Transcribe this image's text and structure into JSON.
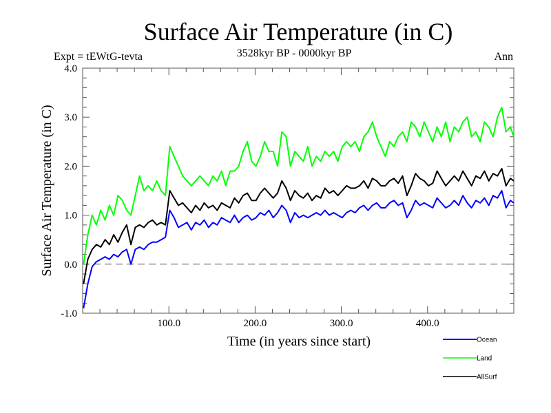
{
  "chart_data": {
    "type": "line",
    "title": "Surface Air Temperature (in C)",
    "subtitle_left": "Expt = tEWtG-tevta",
    "subtitle_center": "3528kyr BP - 0000kyr BP",
    "subtitle_right": "Ann",
    "xlabel": "Time (in years since start)",
    "ylabel": "Surface Air Temperature (in C)",
    "xlim": [
      0,
      500
    ],
    "ylim": [
      -1.0,
      4.0
    ],
    "xticks": [
      100,
      200,
      300,
      400
    ],
    "xtick_labels": [
      "100.0",
      "200.0",
      "300.0",
      "400.0"
    ],
    "yticks": [
      -1.0,
      0.0,
      1.0,
      2.0,
      3.0,
      4.0
    ],
    "ytick_labels": [
      "-1.0",
      "0.0",
      "1.0",
      "2.0",
      "3.0",
      "4.0"
    ],
    "reference_line": {
      "y": 0.0,
      "style": "dashed"
    },
    "legend_position": "bottom-right",
    "x_step": 5,
    "x_start": 1,
    "series": [
      {
        "name": "Ocean",
        "color": "#0000ff",
        "values": [
          -0.9,
          -0.4,
          -0.05,
          0.05,
          0.1,
          0.15,
          0.1,
          0.2,
          0.15,
          0.25,
          0.3,
          0.0,
          0.3,
          0.35,
          0.3,
          0.4,
          0.45,
          0.45,
          0.5,
          0.55,
          1.1,
          0.95,
          0.75,
          0.8,
          0.85,
          0.7,
          0.85,
          0.8,
          0.9,
          0.75,
          0.85,
          0.8,
          0.95,
          0.9,
          0.85,
          1.0,
          0.85,
          0.95,
          1.0,
          0.9,
          0.95,
          1.05,
          1.0,
          1.1,
          0.95,
          1.05,
          1.2,
          1.1,
          0.85,
          1.05,
          0.95,
          1.0,
          0.95,
          1.0,
          1.05,
          1.0,
          1.1,
          1.0,
          1.05,
          1.0,
          0.95,
          1.05,
          1.1,
          1.05,
          1.15,
          1.2,
          1.1,
          1.2,
          1.25,
          1.15,
          1.15,
          1.25,
          1.3,
          1.2,
          1.25,
          0.95,
          1.1,
          1.3,
          1.2,
          1.25,
          1.2,
          1.15,
          1.35,
          1.25,
          1.15,
          1.2,
          1.3,
          1.2,
          1.4,
          1.25,
          1.15,
          1.3,
          1.25,
          1.35,
          1.2,
          1.4,
          1.35,
          1.5,
          1.15,
          1.3,
          1.25
        ]
      },
      {
        "name": "Land",
        "color": "#00ff00",
        "values": [
          0.0,
          0.6,
          1.0,
          0.8,
          1.1,
          0.9,
          1.2,
          1.0,
          1.4,
          1.3,
          1.1,
          1.0,
          1.4,
          1.8,
          1.5,
          1.6,
          1.5,
          1.7,
          1.5,
          1.4,
          2.4,
          2.2,
          2.0,
          1.8,
          1.7,
          1.6,
          1.7,
          1.8,
          1.7,
          1.6,
          1.8,
          1.7,
          1.9,
          1.6,
          1.9,
          1.9,
          2.0,
          2.3,
          2.5,
          2.1,
          2.0,
          2.2,
          2.5,
          2.3,
          2.3,
          2.0,
          2.7,
          2.6,
          2.0,
          2.3,
          2.2,
          2.1,
          2.4,
          2.0,
          2.2,
          2.1,
          2.3,
          2.2,
          2.3,
          2.1,
          2.4,
          2.5,
          2.4,
          2.5,
          2.3,
          2.6,
          2.7,
          2.9,
          2.6,
          2.4,
          2.2,
          2.5,
          2.4,
          2.6,
          2.7,
          2.5,
          2.9,
          2.8,
          2.6,
          2.9,
          2.7,
          2.5,
          2.8,
          2.6,
          2.9,
          2.5,
          2.8,
          2.7,
          2.9,
          3.0,
          2.6,
          2.7,
          2.5,
          2.9,
          2.8,
          2.6,
          3.0,
          3.2,
          2.7,
          2.8,
          2.6
        ]
      },
      {
        "name": "AllSurf",
        "color": "#000000",
        "values": [
          -0.4,
          0.1,
          0.3,
          0.4,
          0.35,
          0.5,
          0.4,
          0.6,
          0.45,
          0.65,
          0.8,
          0.4,
          0.75,
          0.8,
          0.75,
          0.85,
          0.9,
          0.8,
          0.85,
          0.8,
          1.5,
          1.35,
          1.2,
          1.25,
          1.15,
          1.05,
          1.2,
          1.1,
          1.25,
          1.15,
          1.2,
          1.1,
          1.25,
          1.2,
          1.15,
          1.35,
          1.25,
          1.4,
          1.45,
          1.3,
          1.3,
          1.45,
          1.55,
          1.45,
          1.35,
          1.45,
          1.7,
          1.55,
          1.3,
          1.5,
          1.4,
          1.35,
          1.45,
          1.3,
          1.4,
          1.35,
          1.55,
          1.45,
          1.5,
          1.4,
          1.5,
          1.6,
          1.55,
          1.55,
          1.6,
          1.7,
          1.55,
          1.75,
          1.7,
          1.6,
          1.6,
          1.7,
          1.75,
          1.65,
          1.8,
          1.4,
          1.6,
          1.85,
          1.75,
          1.7,
          1.6,
          1.65,
          1.9,
          1.75,
          1.6,
          1.7,
          1.8,
          1.7,
          1.9,
          1.75,
          1.6,
          1.8,
          1.75,
          1.9,
          1.7,
          1.85,
          1.8,
          1.95,
          1.6,
          1.75,
          1.7
        ]
      }
    ]
  }
}
